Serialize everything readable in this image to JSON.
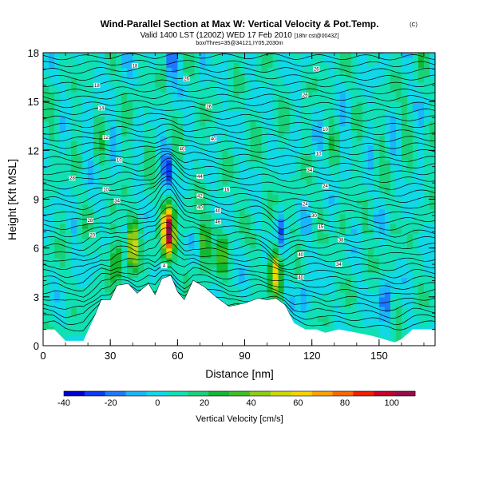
{
  "title": "Wind-Parallel Section at Max W: Vertical Velocity & Pot.Temp.",
  "title_mark": "(C)",
  "subtitle": "Valid 1400 LST (1200Z) WED 17 Feb 2010",
  "subtitle_note": "[18hr cst@0043Z]",
  "subtitle2": "box/Thres=35@34121,IY05,2030m",
  "colors": {
    "background": "#ffffff",
    "terrain": "#ffffff",
    "theta_contour": "#000000",
    "frame": "#000000"
  },
  "chart_data": {
    "type": "heatmap",
    "xlabel": "Distance [nm]",
    "ylabel": "Height [Kft MSL]",
    "xlim": [
      0,
      175
    ],
    "ylim": [
      0,
      18
    ],
    "xticks": [
      0,
      30,
      60,
      90,
      120,
      150
    ],
    "yticks": [
      0,
      3,
      6,
      9,
      12,
      15,
      18
    ],
    "colorbar": {
      "label": "Vertical Velocity [cm/s]",
      "ticks": [
        -40,
        -20,
        0,
        20,
        40,
        60,
        80,
        100
      ],
      "range": [
        -40,
        110
      ],
      "colors": [
        "#0000d0",
        "#0a3cf0",
        "#1e78ff",
        "#1ab4ff",
        "#10d8e6",
        "#10e0b4",
        "#18d27a",
        "#12b830",
        "#3cc020",
        "#8ccc16",
        "#ccd60c",
        "#f6d200",
        "#ffa000",
        "#ff6600",
        "#f21e00",
        "#c8002a",
        "#9c0a46"
      ]
    },
    "terrain_profile": [
      [
        0,
        1.0
      ],
      [
        5,
        1.0
      ],
      [
        10,
        0.3
      ],
      [
        18,
        0.3
      ],
      [
        23,
        1.8
      ],
      [
        26,
        2.8
      ],
      [
        30,
        2.8
      ],
      [
        33,
        3.7
      ],
      [
        38,
        3.8
      ],
      [
        42,
        3.2
      ],
      [
        47,
        3.8
      ],
      [
        50,
        3.1
      ],
      [
        53,
        4.1
      ],
      [
        57,
        4.3
      ],
      [
        60,
        3.3
      ],
      [
        63,
        2.8
      ],
      [
        67,
        4.0
      ],
      [
        72,
        3.6
      ],
      [
        77,
        3.0
      ],
      [
        83,
        2.4
      ],
      [
        90,
        2.6
      ],
      [
        96,
        2.9
      ],
      [
        100,
        2.8
      ],
      [
        104,
        2.9
      ],
      [
        108,
        2.5
      ],
      [
        112,
        1.4
      ],
      [
        117,
        1.0
      ],
      [
        122,
        1.0
      ],
      [
        126,
        0.8
      ],
      [
        132,
        1.0
      ],
      [
        140,
        0.8
      ],
      [
        147,
        0.6
      ],
      [
        152,
        0.4
      ],
      [
        157,
        0.2
      ],
      [
        160,
        0.4
      ],
      [
        165,
        1.0
      ],
      [
        170,
        1.0
      ],
      [
        175,
        1.0
      ]
    ],
    "updrafts": [
      {
        "x": 56,
        "z": 7.0,
        "peak": 100
      },
      {
        "x": 40,
        "z": 6.2,
        "peak": 45
      },
      {
        "x": 104,
        "z": 4.7,
        "peak": 55
      },
      {
        "x": 72,
        "z": 6.5,
        "peak": 30
      },
      {
        "x": 80,
        "z": 5.6,
        "peak": 25
      },
      {
        "x": 33,
        "z": 5.6,
        "peak": 28
      }
    ],
    "downdrafts": [
      {
        "x": 56,
        "z": 11.0,
        "peak": -30
      },
      {
        "x": 57,
        "z": 17.4,
        "peak": -25
      },
      {
        "x": 106,
        "z": 6.8,
        "peak": -25
      },
      {
        "x": 153,
        "z": 2.7,
        "peak": -28
      },
      {
        "x": 117,
        "z": 3.0,
        "peak": -18
      }
    ],
    "theta_labels": [
      {
        "x": 41,
        "z": 17.2,
        "text": "18"
      },
      {
        "x": 24,
        "z": 16.0,
        "text": "18"
      },
      {
        "x": 26,
        "z": 14.6,
        "text": "14"
      },
      {
        "x": 28,
        "z": 12.8,
        "text": "12"
      },
      {
        "x": 34,
        "z": 11.4,
        "text": "10"
      },
      {
        "x": 13,
        "z": 10.3,
        "text": "28"
      },
      {
        "x": 28,
        "z": 9.6,
        "text": "10"
      },
      {
        "x": 33,
        "z": 8.9,
        "text": "34"
      },
      {
        "x": 21,
        "z": 7.7,
        "text": "28"
      },
      {
        "x": 22,
        "z": 6.8,
        "text": "20"
      },
      {
        "x": 54,
        "z": 4.9,
        "text": "4"
      },
      {
        "x": 64,
        "z": 16.4,
        "text": "26"
      },
      {
        "x": 74,
        "z": 14.7,
        "text": "26"
      },
      {
        "x": 62,
        "z": 12.1,
        "text": "40"
      },
      {
        "x": 76,
        "z": 12.7,
        "text": "40"
      },
      {
        "x": 70,
        "z": 10.4,
        "text": "44"
      },
      {
        "x": 70,
        "z": 9.2,
        "text": "42"
      },
      {
        "x": 70,
        "z": 8.5,
        "text": "40"
      },
      {
        "x": 78,
        "z": 8.3,
        "text": "40"
      },
      {
        "x": 82,
        "z": 9.6,
        "text": "16"
      },
      {
        "x": 78,
        "z": 7.6,
        "text": "46"
      },
      {
        "x": 122,
        "z": 17.0,
        "text": "26"
      },
      {
        "x": 117,
        "z": 15.4,
        "text": "26"
      },
      {
        "x": 126,
        "z": 13.3,
        "text": "10"
      },
      {
        "x": 123,
        "z": 11.8,
        "text": "10"
      },
      {
        "x": 119,
        "z": 10.8,
        "text": "34"
      },
      {
        "x": 126,
        "z": 9.8,
        "text": "24"
      },
      {
        "x": 117,
        "z": 8.7,
        "text": "24"
      },
      {
        "x": 121,
        "z": 8.0,
        "text": "30"
      },
      {
        "x": 124,
        "z": 7.3,
        "text": "15"
      },
      {
        "x": 133,
        "z": 6.5,
        "text": "38"
      },
      {
        "x": 115,
        "z": 5.6,
        "text": "40"
      },
      {
        "x": 132,
        "z": 5.0,
        "text": "34"
      },
      {
        "x": 115,
        "z": 4.2,
        "text": "40"
      }
    ]
  }
}
